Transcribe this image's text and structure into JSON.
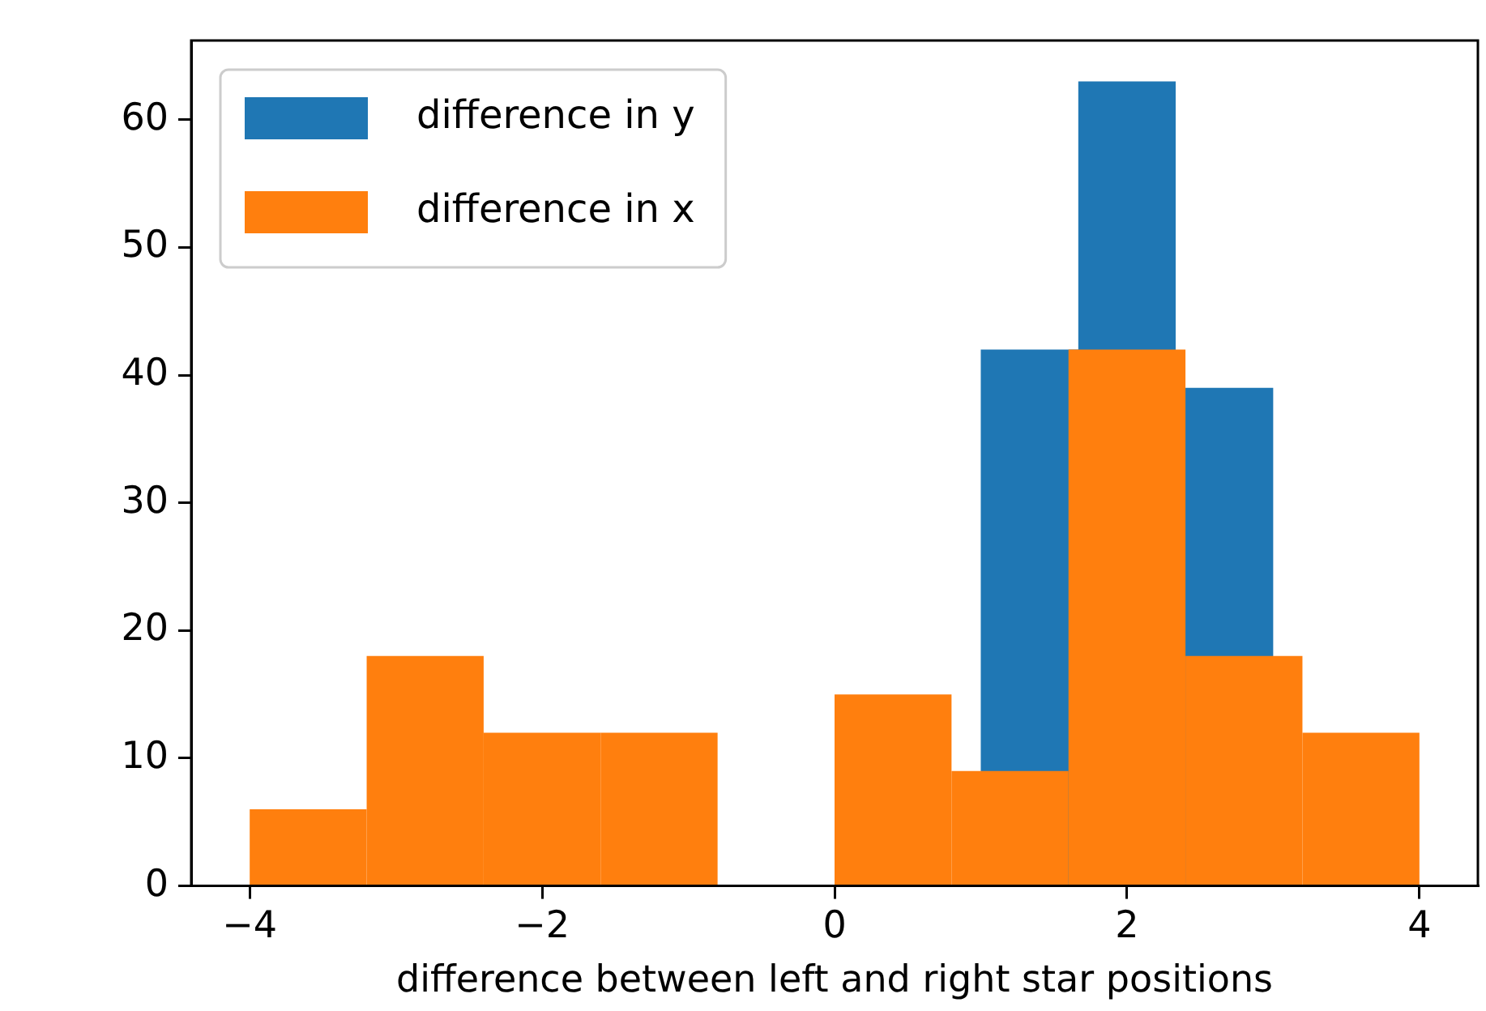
{
  "chart_data": {
    "type": "histogram",
    "xlabel": "difference between left and right star positions",
    "xlim": [
      -4.4,
      4.4
    ],
    "ylim": [
      0,
      66.2
    ],
    "xticks": [
      {
        "value": -4,
        "label": "−4"
      },
      {
        "value": -2,
        "label": "−2"
      },
      0,
      2,
      4
    ],
    "yticks": [
      0,
      10,
      20,
      30,
      40,
      50,
      60
    ],
    "grid": false,
    "legend": "top left",
    "bins": [
      -4,
      -3.2,
      -2.4,
      -1.6,
      -0.8,
      0,
      0.8,
      1.6,
      2.4,
      3.2,
      4
    ],
    "series": [
      {
        "name": "difference in y",
        "color": "#1f77b4",
        "bins": [
          1,
          1.667,
          2.333,
          3
        ],
        "values": [
          42,
          63,
          39
        ]
      },
      {
        "name": "difference in x",
        "color": "#ff7f0e",
        "values": [
          6,
          18,
          12,
          12,
          0,
          15,
          9,
          42,
          18,
          12
        ]
      }
    ]
  }
}
